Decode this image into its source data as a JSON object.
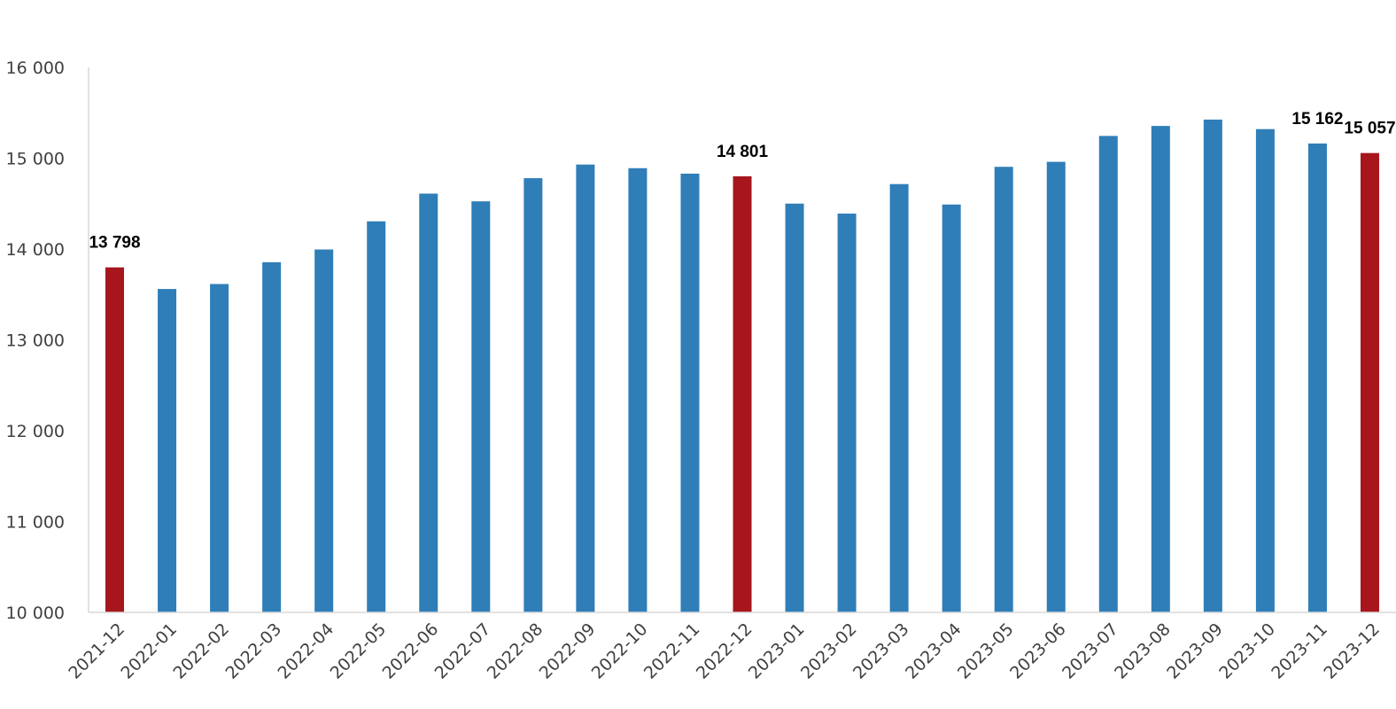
{
  "chart_data": {
    "type": "bar",
    "title": "",
    "xlabel": "",
    "ylabel": "",
    "ylim": [
      10000,
      16000
    ],
    "yticks": [
      10000,
      11000,
      12000,
      13000,
      14000,
      15000,
      16000
    ],
    "ytick_labels": [
      "10 000",
      "11 000",
      "12 000",
      "13 000",
      "14 000",
      "15 000",
      "16 000"
    ],
    "grid": false,
    "legend": "none",
    "categories": [
      "2021-12",
      "2022-01",
      "2022-02",
      "2022-03",
      "2022-04",
      "2022-05",
      "2022-06",
      "2022-07",
      "2022-08",
      "2022-09",
      "2022-10",
      "2022-11",
      "2022-12",
      "2023-01",
      "2023-02",
      "2023-03",
      "2023-04",
      "2023-05",
      "2023-06",
      "2023-07",
      "2023-08",
      "2023-09",
      "2023-10",
      "2023-11",
      "2023-12"
    ],
    "values": [
      13798,
      13560,
      13615,
      13855,
      13995,
      14305,
      14610,
      14525,
      14780,
      14930,
      14890,
      14830,
      14801,
      14500,
      14390,
      14715,
      14490,
      14905,
      14960,
      15245,
      15355,
      15425,
      15320,
      15162,
      15057
    ],
    "highlighted": [
      "2021-12",
      "2022-12",
      "2023-12"
    ],
    "data_labels": [
      {
        "category": "2021-12",
        "text": "13 798"
      },
      {
        "category": "2022-12",
        "text": "14 801"
      },
      {
        "category": "2023-11",
        "text": "15 162"
      },
      {
        "category": "2023-12",
        "text": "15 057"
      }
    ],
    "colors": {
      "bar": "#2F7EB8",
      "highlight": "#A6161C",
      "axis": "#D9D9D9"
    }
  }
}
